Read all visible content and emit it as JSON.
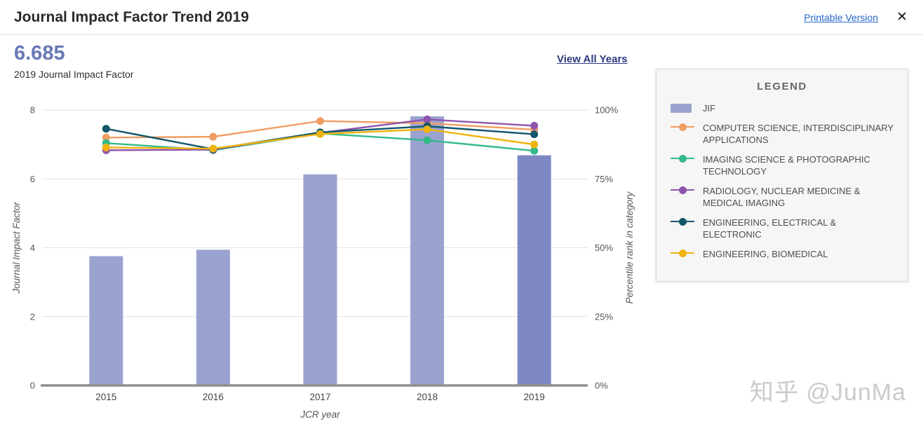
{
  "header": {
    "title": "Journal Impact Factor Trend 2019",
    "printable_link": "Printable Version",
    "close_icon": "✕"
  },
  "summary": {
    "value": "6.685",
    "caption": "2019 Journal Impact Factor",
    "view_all_label": "View All Years"
  },
  "legend": {
    "title": "LEGEND",
    "items": [
      {
        "label": "JIF",
        "marker": "bar",
        "color": "#9aa3cf"
      },
      {
        "label": "COMPUTER SCIENCE, INTERDISCIPLINARY APPLICATIONS",
        "marker": "line",
        "color": "#f09d63"
      },
      {
        "label": "IMAGING SCIENCE & PHOTOGRAPHIC TECHNOLOGY",
        "marker": "line",
        "color": "#34b98a"
      },
      {
        "label": "RADIOLOGY, NUCLEAR MEDICINE & MEDICAL IMAGING",
        "marker": "line",
        "color": "#8f55ad"
      },
      {
        "label": "ENGINEERING, ELECTRICAL & ELECTRONIC",
        "marker": "line",
        "color": "#12566b"
      },
      {
        "label": "ENGINEERING, BIOMEDICAL",
        "marker": "line",
        "color": "#efb310"
      }
    ]
  },
  "chart_data": {
    "type": "combo-bar-line",
    "x": [
      "2015",
      "2016",
      "2017",
      "2018",
      "2019"
    ],
    "xlabel": "JCR year",
    "bar": {
      "name": "JIF",
      "ylabel": "Journal Impact Factor",
      "values": [
        3.756,
        3.942,
        6.131,
        7.816,
        6.685
      ],
      "ylim": [
        0,
        8
      ],
      "yticks": [
        0,
        2,
        4,
        6,
        8
      ],
      "color": "#9aa3cf",
      "highlight_color": "#7d88c2",
      "highlight_index": 4
    },
    "right_axis": {
      "label": "Percentile rank in category",
      "ylim": [
        0,
        100
      ],
      "ticks": [
        "0%",
        "25%",
        "50%",
        "75%",
        "100%"
      ],
      "tick_values": [
        0,
        25,
        50,
        75,
        100
      ]
    },
    "lines": [
      {
        "name": "COMPUTER SCIENCE, INTERDISCIPLINARY APPLICATIONS",
        "color": "#f09d63",
        "values": [
          90.0,
          90.3,
          96.0,
          95.2,
          92.9
        ]
      },
      {
        "name": "IMAGING SCIENCE & PHOTOGRAPHIC TECHNOLOGY",
        "color": "#34b98a",
        "values": [
          88.0,
          85.4,
          91.5,
          89.0,
          85.2
        ]
      },
      {
        "name": "RADIOLOGY, NUCLEAR MEDICINE & MEDICAL IMAGING",
        "color": "#8f55ad",
        "values": [
          85.4,
          85.6,
          91.7,
          96.6,
          94.3
        ]
      },
      {
        "name": "ENGINEERING, ELECTRICAL & ELECTRONIC",
        "color": "#12566b",
        "values": [
          93.2,
          85.8,
          91.9,
          94.1,
          91.2
        ]
      },
      {
        "name": "ENGINEERING, BIOMEDICAL",
        "color": "#efb310",
        "values": [
          86.4,
          86.0,
          91.3,
          93.0,
          87.5
        ]
      }
    ],
    "legend_position": "right",
    "grid": true
  },
  "watermark": {
    "text": "知乎 @JunMa"
  }
}
